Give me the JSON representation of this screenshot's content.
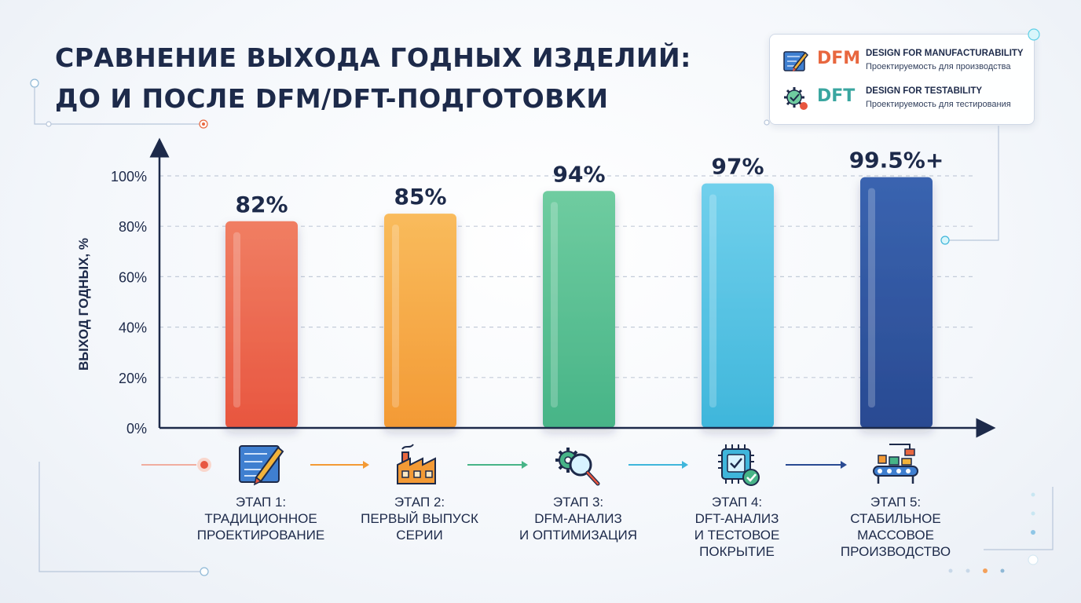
{
  "title": {
    "line1": "СРАВНЕНИЕ ВЫХОДА ГОДНЫХ ИЗДЕЛИЙ:",
    "line2": "ДО И ПОСЛЕ DFM/DFT-ПОДГОТОВКИ"
  },
  "legend": {
    "dfm": {
      "abbr": "DFM",
      "en": "DESIGN FOR MANUFACTURABILITY",
      "ru": "Проектируемость для производства",
      "color": "#e8673f",
      "icon": "blueprint-pencil-icon"
    },
    "dft": {
      "abbr": "DFT",
      "en": "DESIGN FOR TESTABILITY",
      "ru": "Проектируемость для тестирования",
      "color": "#3aa6a0",
      "icon": "gear-check-icon"
    }
  },
  "chart_data": {
    "type": "bar",
    "ylabel": "ВЫХОД ГОДНЫХ, %",
    "ylim": [
      0,
      100
    ],
    "yticks": [
      0,
      20,
      40,
      60,
      80,
      100
    ],
    "ytick_labels": [
      "0%",
      "20%",
      "40%",
      "60%",
      "80%",
      "100%"
    ],
    "grid": true,
    "categories": [
      "ЭТАП 1",
      "ЭТАП 2",
      "ЭТАП 3",
      "ЭТАП 4",
      "ЭТАП 5"
    ],
    "values": [
      82,
      85,
      94,
      97,
      99.5
    ],
    "data_labels": [
      "82%",
      "85%",
      "94%",
      "97%",
      "99.5%+"
    ],
    "colors": [
      "#e8563f",
      "#f39a35",
      "#47b487",
      "#3fb6db",
      "#294a92"
    ],
    "colors_light": [
      "#f07e63",
      "#f9bb5c",
      "#6fcca0",
      "#71d0ec",
      "#3a64b0"
    ]
  },
  "stages": [
    {
      "lines": [
        "ЭТАП 1:",
        "ТРАДИЦИОННОЕ",
        "ПРОЕКТИРОВАНИЕ"
      ],
      "icon": "blueprint-pencil-icon"
    },
    {
      "lines": [
        "ЭТАП 2:",
        "ПЕРВЫЙ ВЫПУСК",
        "СЕРИИ"
      ],
      "icon": "factory-icon"
    },
    {
      "lines": [
        "ЭТАП 3:",
        "DFM-АНАЛИЗ",
        "И ОПТИМИЗАЦИЯ"
      ],
      "icon": "gears-magnifier-icon"
    },
    {
      "lines": [
        "ЭТАП 4:",
        "DFT-АНАЛИЗ",
        "И ТЕСТОВОЕ",
        "ПОКРЫТИЕ"
      ],
      "icon": "chip-check-icon"
    },
    {
      "lines": [
        "ЭТАП 5:",
        "СТАБИЛЬНОЕ МАССОВОЕ",
        "ПРОИЗВОДСТВО"
      ],
      "icon": "conveyor-icon"
    }
  ],
  "flow_arrow_colors": [
    "#f07e63",
    "#f39a35",
    "#47b487",
    "#3fb6db",
    "#294a92"
  ]
}
